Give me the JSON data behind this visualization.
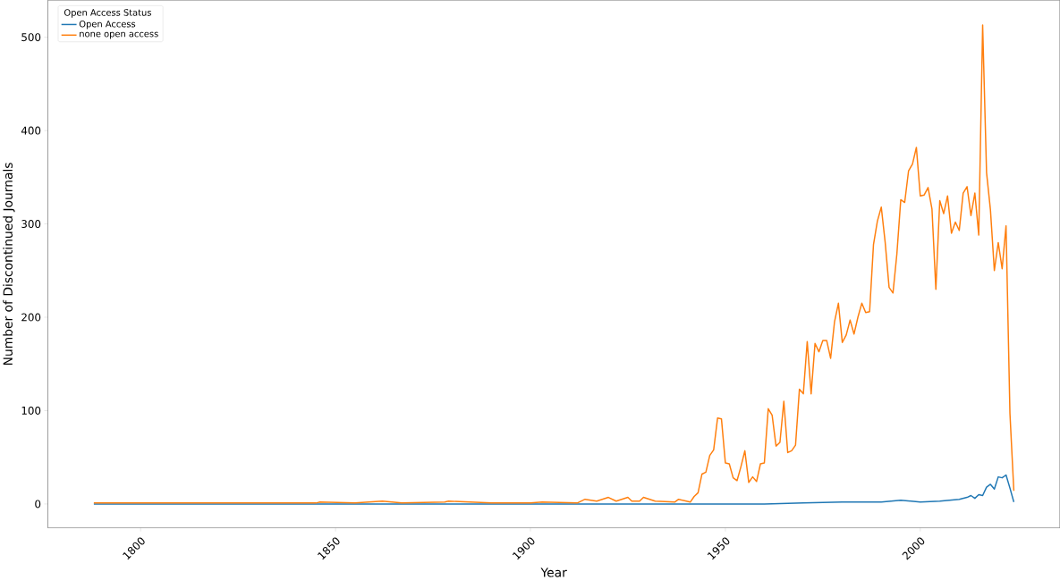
{
  "chart_data": {
    "type": "line",
    "xlabel": "Year",
    "ylabel": "Number of Discontinued Journals",
    "legend_title": "Open Access Status",
    "legend": "top left",
    "xlim": [
      1776.2,
      2035.8
    ],
    "ylim": [
      -25.7,
      539.7
    ],
    "xticks": [
      1800,
      1850,
      1900,
      1950,
      2000
    ],
    "yticks": [
      0,
      100,
      200,
      300,
      400,
      500
    ],
    "series": [
      {
        "name": "Open Access",
        "color": "#1f77b4",
        "x": [
          1788,
          1940,
          1960,
          1970,
          1980,
          1990,
          1995,
          2000,
          2005,
          2010,
          2012,
          2013,
          2014,
          2015,
          2016,
          2017,
          2018,
          2019,
          2020,
          2021,
          2022,
          2023,
          2024
        ],
        "values": [
          0,
          0,
          0,
          1,
          2,
          2,
          4,
          2,
          3,
          5,
          7,
          9,
          6,
          10,
          9,
          18,
          21,
          16,
          29,
          28,
          31,
          17,
          2
        ]
      },
      {
        "name": "none open access",
        "color": "#ff7f0e",
        "x": [
          1788,
          1845,
          1846,
          1855,
          1862,
          1867,
          1878,
          1879,
          1890,
          1900,
          1903,
          1912,
          1914,
          1917,
          1920,
          1922,
          1925,
          1926,
          1928,
          1929,
          1932,
          1937,
          1938,
          1940,
          1941,
          1942,
          1943,
          1944,
          1945,
          1946,
          1947,
          1948,
          1949,
          1950,
          1951,
          1952,
          1953,
          1954,
          1955,
          1956,
          1957,
          1958,
          1959,
          1960,
          1961,
          1962,
          1963,
          1964,
          1965,
          1966,
          1967,
          1968,
          1969,
          1970,
          1971,
          1972,
          1973,
          1974,
          1975,
          1976,
          1977,
          1978,
          1979,
          1980,
          1981,
          1982,
          1983,
          1984,
          1985,
          1986,
          1987,
          1988,
          1989,
          1990,
          1991,
          1992,
          1993,
          1994,
          1995,
          1996,
          1997,
          1998,
          1999,
          2000,
          2001,
          2002,
          2003,
          2004,
          2005,
          2006,
          2007,
          2008,
          2009,
          2010,
          2011,
          2012,
          2013,
          2014,
          2015,
          2016,
          2017,
          2018,
          2019,
          2020,
          2021,
          2022,
          2023,
          2024
        ],
        "values": [
          1,
          1,
          2,
          1,
          3,
          1,
          2,
          3,
          1,
          1,
          2,
          1,
          5,
          3,
          7,
          3,
          7,
          3,
          3,
          7,
          3,
          2,
          5,
          3,
          2,
          8,
          12,
          32,
          34,
          52,
          58,
          92,
          91,
          44,
          43,
          28,
          25,
          40,
          57,
          23,
          29,
          24,
          43,
          44,
          102,
          95,
          62,
          66,
          110,
          55,
          57,
          63,
          123,
          118,
          174,
          118,
          172,
          163,
          175,
          175,
          156,
          195,
          215,
          173,
          181,
          197,
          182,
          200,
          215,
          205,
          206,
          278,
          303,
          318,
          280,
          232,
          226,
          268,
          326,
          323,
          357,
          364,
          382,
          330,
          331,
          339,
          316,
          230,
          325,
          311,
          330,
          290,
          302,
          293,
          333,
          340,
          309,
          333,
          288,
          513,
          355,
          315,
          250,
          280,
          252,
          298,
          97,
          14
        ]
      }
    ]
  }
}
